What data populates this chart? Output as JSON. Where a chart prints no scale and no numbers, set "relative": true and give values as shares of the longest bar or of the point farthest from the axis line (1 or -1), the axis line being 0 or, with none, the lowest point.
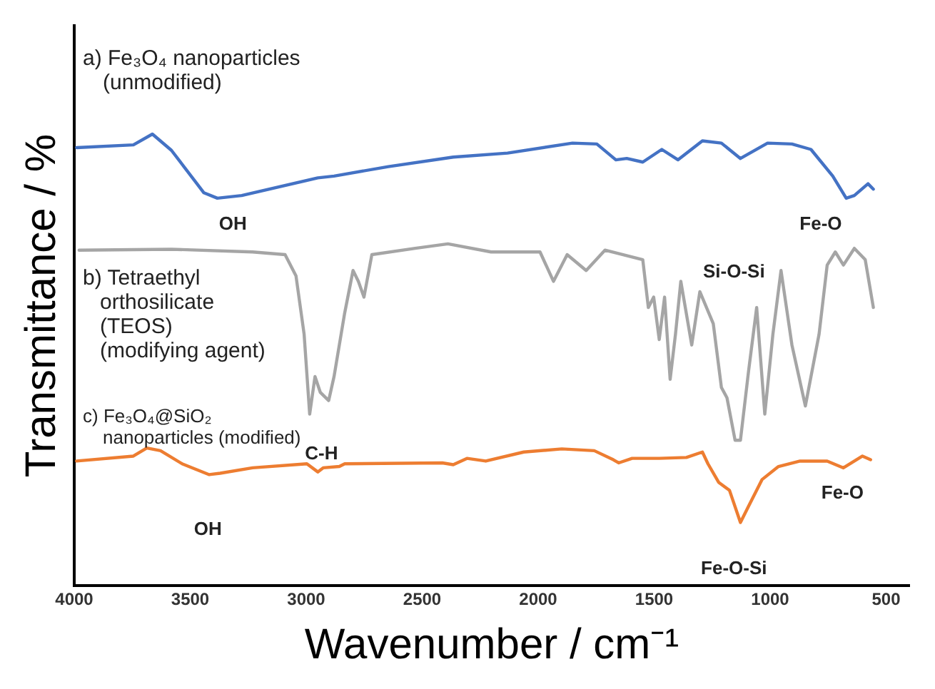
{
  "chart_data": {
    "type": "line",
    "relative": true,
    "xlabel": "Wavenumber / cm⁻¹",
    "ylabel": "Transmittance / %",
    "xlim": [
      4000,
      400
    ],
    "xticks": [
      4000,
      3500,
      3000,
      2500,
      2000,
      1500,
      1000,
      500
    ],
    "grid": false,
    "legend": false,
    "marker": "none",
    "line_style": "solid",
    "series": [
      {
        "name": "a) Fe₃O₄ nanoparticles\n(unmodified)",
        "color": "#4472c4",
        "x": [
          3990,
          3745,
          3663,
          3581,
          3441,
          3383,
          3278,
          2950,
          2880,
          2646,
          2366,
          2132,
          1852,
          1747,
          1665,
          1618,
          1549,
          1467,
          1397,
          1292,
          1210,
          1128,
          1011,
          906,
          824,
          730,
          672,
          637,
          578,
          555
        ],
        "values": [
          0.97,
          0.976,
          1.0,
          0.964,
          0.87,
          0.858,
          0.864,
          0.903,
          0.907,
          0.928,
          0.949,
          0.958,
          0.98,
          0.978,
          0.943,
          0.946,
          0.938,
          0.966,
          0.943,
          0.985,
          0.98,
          0.946,
          0.98,
          0.978,
          0.966,
          0.907,
          0.858,
          0.864,
          0.89,
          0.878
        ]
      },
      {
        "name": "b) Tetraethyl\northosilicate\n(TEOS)\n(modifying agent)",
        "color": "#a5a5a5",
        "x": [
          3979,
          3581,
          3231,
          3091,
          3044,
          3009,
          2985,
          2962,
          2939,
          2903,
          2880,
          2834,
          2798,
          2775,
          2751,
          2717,
          2530,
          2389,
          2203,
          1992,
          1934,
          1875,
          1793,
          1712,
          1549,
          1525,
          1502,
          1478,
          1455,
          1431,
          1408,
          1385,
          1338,
          1303,
          1245,
          1210,
          1186,
          1151,
          1128,
          1093,
          1058,
          1023,
          988,
          953,
          906,
          848,
          789,
          754,
          719,
          684,
          637,
          590,
          555
        ],
        "values": [
          0.743,
          0.745,
          0.739,
          0.733,
          0.686,
          0.557,
          0.38,
          0.463,
          0.428,
          0.41,
          0.463,
          0.604,
          0.698,
          0.674,
          0.639,
          0.733,
          0.747,
          0.757,
          0.739,
          0.739,
          0.674,
          0.733,
          0.698,
          0.743,
          0.722,
          0.616,
          0.639,
          0.545,
          0.639,
          0.457,
          0.557,
          0.674,
          0.533,
          0.651,
          0.58,
          0.439,
          0.416,
          0.322,
          0.322,
          0.475,
          0.616,
          0.38,
          0.557,
          0.698,
          0.533,
          0.398,
          0.557,
          0.71,
          0.739,
          0.71,
          0.747,
          0.722,
          0.616
        ]
      },
      {
        "name": "c) Fe₃O₄@SiO₂\nnanoparticles (modified)",
        "color": "#ed7d31",
        "x": [
          3990,
          3745,
          3687,
          3628,
          3535,
          3418,
          3371,
          3231,
          2997,
          2950,
          2927,
          2857,
          2834,
          2413,
          2366,
          2307,
          2226,
          2062,
          1898,
          1758,
          1676,
          1653,
          1595,
          1478,
          1361,
          1292,
          1268,
          1222,
          1175,
          1128,
          1093,
          1035,
          964,
          871,
          754,
          684,
          602,
          567
        ],
        "values": [
          0.276,
          0.287,
          0.305,
          0.299,
          0.27,
          0.246,
          0.249,
          0.261,
          0.27,
          0.252,
          0.261,
          0.264,
          0.27,
          0.272,
          0.268,
          0.282,
          0.276,
          0.296,
          0.303,
          0.299,
          0.279,
          0.272,
          0.282,
          0.282,
          0.284,
          0.296,
          0.27,
          0.229,
          0.211,
          0.14,
          0.176,
          0.235,
          0.264,
          0.276,
          0.276,
          0.261,
          0.287,
          0.279
        ]
      }
    ],
    "annotations": [
      "OH",
      "Fe-O",
      "Si-O-Si",
      "C-H",
      "OH",
      "Fe-O",
      "Fe-O-Si"
    ]
  }
}
